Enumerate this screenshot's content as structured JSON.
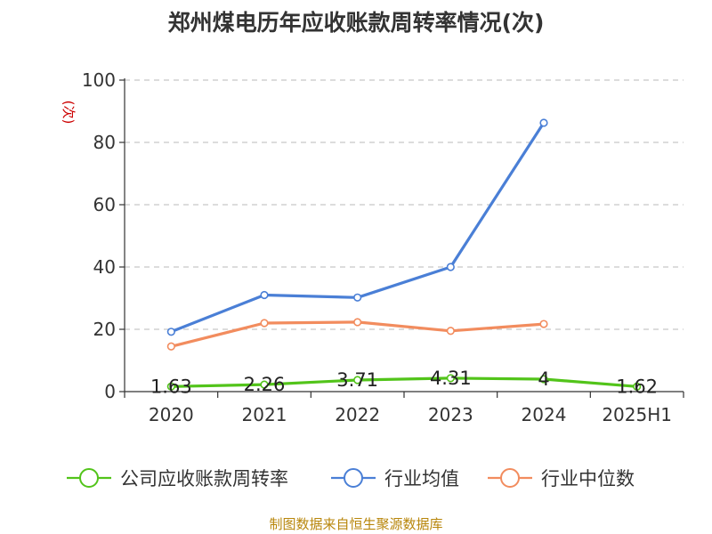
{
  "title": "郑州煤电历年应收账款周转率情况(次)",
  "source": "制图数据来自恒生聚源数据库",
  "chart_data": {
    "type": "line",
    "title": "郑州煤电历年应收账款周转率情况(次)",
    "ylabel": "(次)",
    "xlabel": "",
    "ylim": [
      0,
      100
    ],
    "yticks": [
      0,
      20,
      40,
      60,
      80,
      100
    ],
    "grid": true,
    "legend_position": "bottom",
    "categories": [
      "2020",
      "2021",
      "2022",
      "2023",
      "2024",
      "2025H1"
    ],
    "series": [
      {
        "name": "公司应收账款周转率",
        "color": "#52c41a",
        "values": [
          1.63,
          2.26,
          3.71,
          4.31,
          4,
          1.62
        ],
        "labels": [
          "1.63",
          "2.26",
          "3.71",
          "4.31",
          "4",
          "1.62"
        ]
      },
      {
        "name": "行业均值",
        "color": "#4a7fd6",
        "values": [
          19.2,
          31.0,
          30.2,
          40.0,
          86.3,
          null
        ]
      },
      {
        "name": "行业中位数",
        "color": "#f28c5e",
        "values": [
          14.5,
          22.0,
          22.3,
          19.5,
          21.7,
          null
        ]
      }
    ]
  }
}
